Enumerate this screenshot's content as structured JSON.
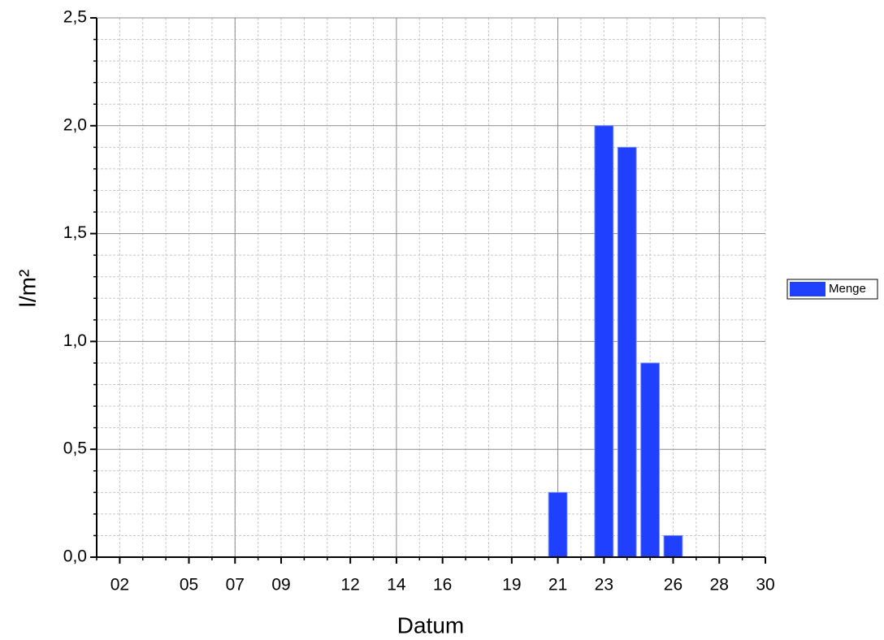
{
  "chart_data": {
    "type": "bar",
    "x_label": "Datum",
    "y_label": "l/m²",
    "x": [
      21,
      23,
      24,
      25,
      26
    ],
    "series": [
      {
        "name": "Menge",
        "color": "#2040ff",
        "values": [
          0.3,
          2.0,
          1.9,
          0.9,
          0.1
        ]
      }
    ],
    "xlim": [
      1,
      30
    ],
    "xticks": [
      {
        "value": 2,
        "label": "02"
      },
      {
        "value": 5,
        "label": "05"
      },
      {
        "value": 7,
        "label": "07"
      },
      {
        "value": 9,
        "label": "09"
      },
      12,
      14,
      16,
      19,
      21,
      23,
      26,
      28,
      30
    ],
    "xgrid": [
      7,
      14,
      21,
      28
    ],
    "xminorticks": [
      1,
      2,
      3,
      4,
      5,
      6,
      7,
      8,
      9,
      10,
      11,
      12,
      13,
      14,
      15,
      16,
      17,
      18,
      19,
      20,
      21,
      22,
      23,
      24,
      25,
      26,
      27,
      28,
      29,
      30
    ],
    "ylim": [
      0,
      2.5
    ],
    "yticks": [
      {
        "value": 0,
        "label": "0,0"
      },
      {
        "value": 0.5,
        "label": "0,5"
      },
      {
        "value": 1.0,
        "label": "1,0"
      },
      {
        "value": 1.5,
        "label": "1,5"
      },
      {
        "value": 2.0,
        "label": "2,0"
      },
      {
        "value": 2.5,
        "label": "2,5"
      }
    ],
    "yminorticks": [
      0.1,
      0.2,
      0.3,
      0.4,
      0.6,
      0.7,
      0.8,
      0.9,
      1.1,
      1.2,
      1.3,
      1.4,
      1.6,
      1.7,
      1.8,
      1.9,
      2.1,
      2.2,
      2.3,
      2.4
    ],
    "grid": true,
    "legend": "right"
  }
}
